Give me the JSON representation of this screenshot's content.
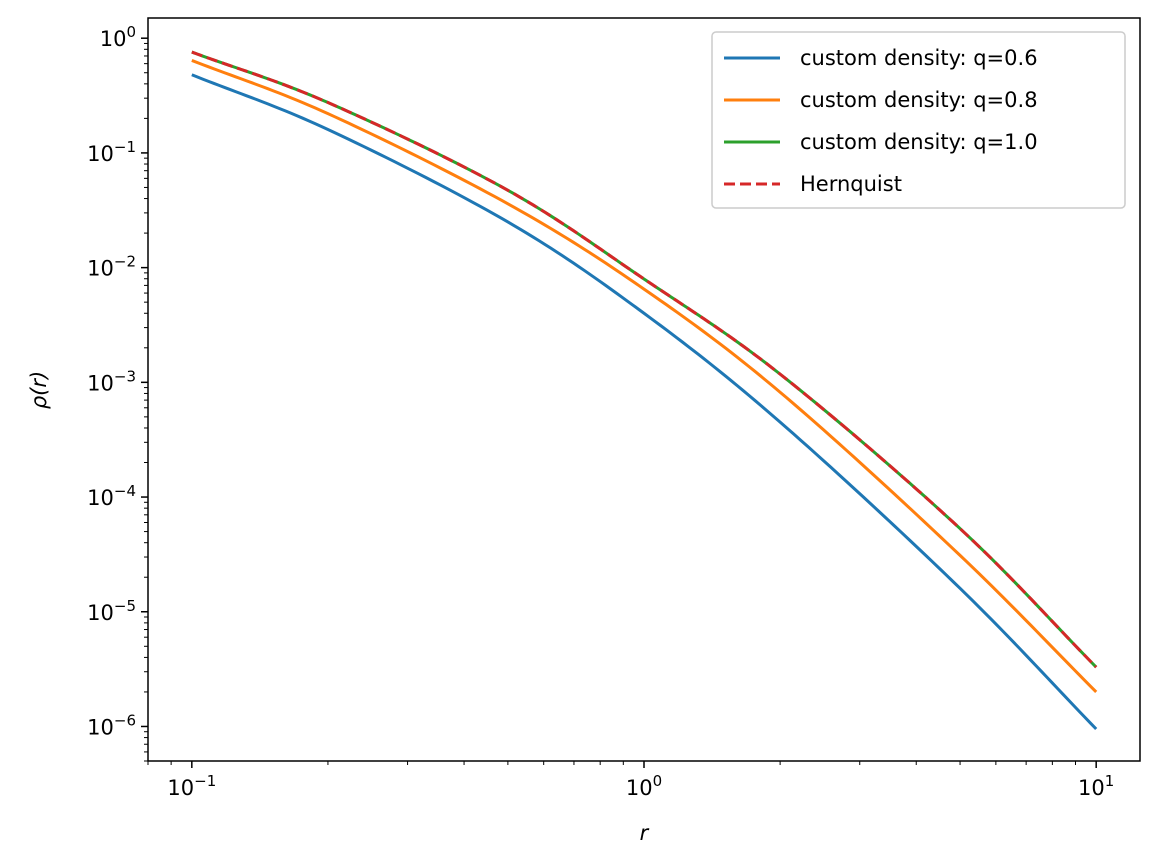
{
  "chart_data": {
    "type": "line",
    "title": "",
    "xlabel": "r",
    "ylabel": "ρ(r)",
    "xscale": "log",
    "yscale": "log",
    "xlim": [
      0.08,
      12.5
    ],
    "ylim": [
      5e-07,
      1.5
    ],
    "grid": false,
    "legend_position": "top-right",
    "x_ticks": [
      {
        "value": 0.1,
        "base": "10",
        "exp": "−1"
      },
      {
        "value": 1,
        "base": "10",
        "exp": "0"
      },
      {
        "value": 10,
        "base": "10",
        "exp": "1"
      }
    ],
    "y_ticks": [
      {
        "value": 1,
        "base": "10",
        "exp": "0"
      },
      {
        "value": 0.1,
        "base": "10",
        "exp": "−1"
      },
      {
        "value": 0.01,
        "base": "10",
        "exp": "−2"
      },
      {
        "value": 0.001,
        "base": "10",
        "exp": "−3"
      },
      {
        "value": 0.0001,
        "base": "10",
        "exp": "−4"
      },
      {
        "value": 1e-05,
        "base": "10",
        "exp": "−5"
      },
      {
        "value": 1e-06,
        "base": "10",
        "exp": "−6"
      }
    ],
    "x": [
      0.1,
      0.2,
      0.5,
      1,
      2,
      5,
      10
    ],
    "series": [
      {
        "name": "custom density: q=0.6",
        "color": "#1f77b4",
        "dash": false,
        "values": [
          0.48,
          0.16,
          0.025,
          0.004,
          0.00045,
          1.6e-05,
          9.5e-07
        ]
      },
      {
        "name": "custom density: q=0.8",
        "color": "#ff7f0e",
        "dash": false,
        "values": [
          0.64,
          0.22,
          0.036,
          0.0065,
          0.00082,
          3.1e-05,
          2e-06
        ]
      },
      {
        "name": "custom density: q=1.0",
        "color": "#2ca02c",
        "dash": false,
        "values": [
          0.7569,
          0.2749,
          0.0472,
          0.00796,
          0.001179,
          5.31e-05,
          3.29e-06
        ]
      },
      {
        "name": "Hernquist",
        "color": "#d62728",
        "dash": true,
        "values": [
          0.7569,
          0.2749,
          0.0472,
          0.00796,
          0.001179,
          5.31e-05,
          3.29e-06
        ]
      }
    ]
  }
}
